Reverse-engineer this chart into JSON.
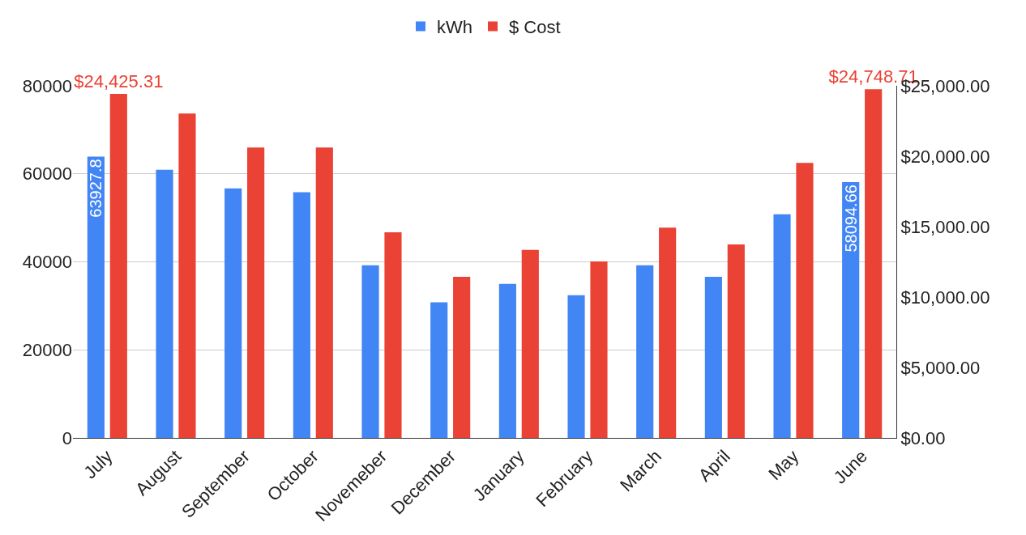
{
  "chart_data": {
    "type": "bar",
    "categories": [
      "July",
      "August",
      "September",
      "October",
      "Novemeber",
      "December",
      "January",
      "February",
      "March",
      "April",
      "May",
      "June"
    ],
    "series": [
      {
        "name": "kWh",
        "color": "#4285f4",
        "values": [
          63927.8,
          60900,
          56700,
          55800,
          39200,
          30800,
          35000,
          32400,
          39200,
          36600,
          50800,
          58094.66
        ],
        "value_labels": [
          "63927.8",
          null,
          null,
          null,
          null,
          null,
          null,
          null,
          null,
          null,
          null,
          "58094.66"
        ]
      },
      {
        "name": "$ Cost",
        "color": "#ea4335",
        "axis": "y2",
        "values": [
          24425.31,
          23030,
          20620,
          20620,
          14600,
          11430,
          13350,
          12530,
          14930,
          13730,
          19530,
          24748.71
        ],
        "value_labels": [
          "$24,425.31",
          null,
          null,
          null,
          null,
          null,
          null,
          null,
          null,
          null,
          null,
          "$24,748.71"
        ]
      }
    ],
    "ylim": [
      0,
      80000
    ],
    "yticks": [
      0,
      20000,
      40000,
      60000,
      80000
    ],
    "y2lim": [
      0,
      25000
    ],
    "y2ticks": [
      {
        "value": 0,
        "label": "$0.00"
      },
      {
        "value": 5000,
        "label": "$5,000.00"
      },
      {
        "value": 10000,
        "label": "$10,000.00"
      },
      {
        "value": 15000,
        "label": "$15,000.00"
      },
      {
        "value": 20000,
        "label": "$20,000.00"
      },
      {
        "value": 25000,
        "label": "$25,000.00"
      }
    ],
    "grid": "y",
    "legend": "top"
  }
}
